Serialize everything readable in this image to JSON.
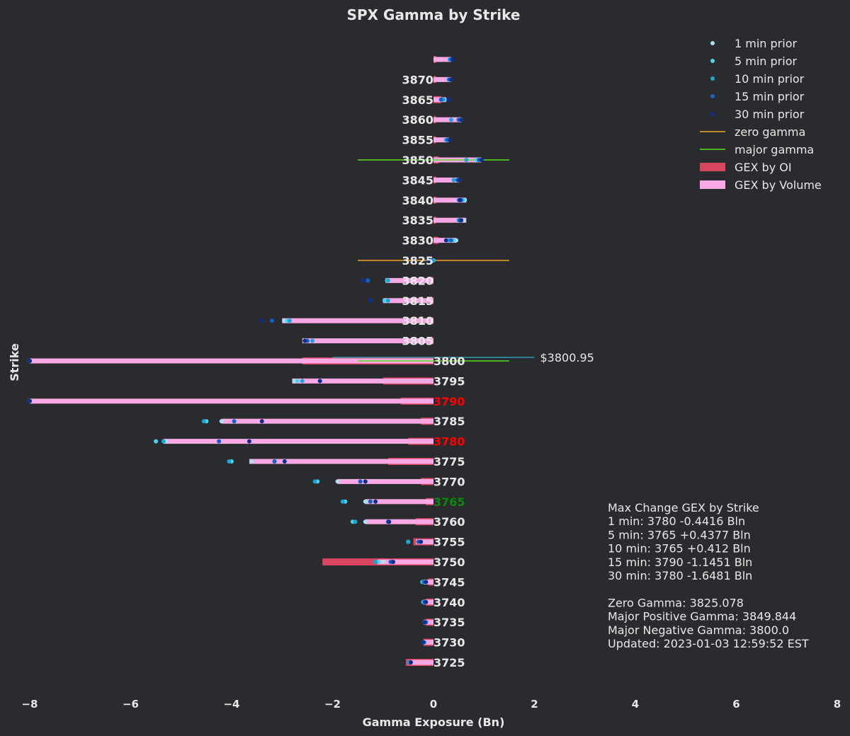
{
  "chart_data": {
    "type": "bar",
    "orientation": "horizontal",
    "title": "SPX Gamma by Strike",
    "xlabel": "Gamma Exposure (Bn)",
    "ylabel": "Strike",
    "xlim": [
      -8,
      8
    ],
    "xticks": [
      -8,
      -6,
      -4,
      -2,
      0,
      2,
      4,
      6,
      8
    ],
    "xtick_labels": [
      "−8",
      "−6",
      "−4",
      "−2",
      "0",
      "2",
      "4",
      "6",
      "8"
    ],
    "grid": false,
    "legend_position": "top-right",
    "strike_labels": [
      "",
      "3870",
      "3865",
      "3860",
      "3855",
      "3850",
      "3845",
      "3840",
      "3835",
      "3830",
      "3825",
      "3820",
      "3815",
      "3810",
      "3805",
      "3800",
      "3795",
      "3790",
      "3785",
      "3780",
      "3775",
      "3770",
      "3765",
      "3760",
      "3755",
      "3750",
      "3745",
      "3740",
      "3735",
      "3730",
      "3725"
    ],
    "strike_label_colors": {
      "3790": "#ff0000",
      "3780": "#ff0000",
      "3765": "#0a8a0a"
    },
    "series": [
      {
        "name": "GEX by OI",
        "color": "#d9455f",
        "values": [
          0.05,
          0.05,
          0.15,
          0.05,
          0.05,
          0.1,
          0.05,
          0.05,
          0.05,
          0.1,
          0.0,
          -0.05,
          -0.05,
          -0.05,
          -0.05,
          -2.6,
          -1.0,
          -0.65,
          -0.25,
          -0.5,
          -0.9,
          -0.25,
          -0.15,
          -0.35,
          -0.4,
          -2.2,
          -0.1,
          -0.15,
          -0.15,
          -0.2,
          -0.55
        ]
      },
      {
        "name": "GEX by Volume",
        "color": "#f9a8e6",
        "values": [
          0.35,
          0.35,
          0.25,
          0.55,
          0.3,
          0.95,
          0.5,
          0.65,
          0.65,
          0.45,
          0.0,
          -0.95,
          -1.0,
          -3.0,
          -2.6,
          -8.0,
          -2.8,
          -8.0,
          -4.2,
          -5.35,
          -3.65,
          -1.9,
          -1.35,
          -1.35,
          -0.35,
          -1.1,
          -0.2,
          -0.2,
          -0.2,
          -0.2,
          -0.45
        ]
      }
    ],
    "prior_series": [
      {
        "name": "1 min prior",
        "color": "#a8e3f5",
        "values": [
          0.35,
          0.33,
          0.22,
          0.55,
          0.3,
          0.9,
          0.5,
          0.62,
          0.6,
          0.45,
          0.0,
          -0.9,
          -0.95,
          -2.95,
          -2.55,
          -8.0,
          -2.75,
          -8.0,
          -4.2,
          -5.3,
          -3.6,
          -1.9,
          -1.35,
          -1.35,
          -0.5,
          -1.0,
          -0.2,
          -0.2,
          -0.18,
          -0.2,
          -0.45
        ]
      },
      {
        "name": "5 min prior",
        "color": "#4fd2f2",
        "values": [
          0.33,
          0.32,
          0.2,
          0.5,
          0.28,
          0.85,
          0.45,
          0.6,
          0.55,
          0.4,
          -0.02,
          -0.92,
          -0.97,
          -2.9,
          -2.5,
          -8.0,
          -2.7,
          -8.0,
          -4.5,
          -5.5,
          -4.0,
          -2.3,
          -1.75,
          -1.6,
          -0.5,
          -1.1,
          -0.22,
          -0.2,
          -0.18,
          -0.2,
          -0.45
        ]
      },
      {
        "name": "10 min prior",
        "color": "#1ca6d6",
        "values": [
          0.32,
          0.3,
          0.2,
          0.35,
          0.25,
          0.65,
          0.4,
          0.5,
          0.5,
          0.3,
          0.0,
          -0.9,
          -0.9,
          -2.85,
          -2.4,
          -8.0,
          -2.6,
          -8.0,
          -4.55,
          -5.35,
          -4.05,
          -2.35,
          -1.8,
          -1.55,
          -0.5,
          -1.15,
          -0.2,
          -0.18,
          -0.15,
          -0.18,
          -0.48
        ]
      },
      {
        "name": "15 min prior",
        "color": "#0c64c8",
        "values": [
          0.35,
          0.32,
          0.15,
          0.5,
          0.28,
          0.9,
          0.48,
          0.55,
          0.52,
          0.35,
          -0.05,
          -1.3,
          -1.25,
          -3.2,
          -2.5,
          -8.0,
          -2.25,
          -8.0,
          -3.95,
          -4.25,
          -3.15,
          -1.45,
          -1.25,
          -0.9,
          -0.3,
          -0.85,
          -0.18,
          -0.18,
          -0.15,
          -0.2,
          -0.45
        ]
      },
      {
        "name": "30 min prior",
        "color": "#0c2f8a",
        "values": [
          0.38,
          0.35,
          0.3,
          0.55,
          0.32,
          0.95,
          0.5,
          0.52,
          0.55,
          0.25,
          -0.1,
          -1.4,
          -1.25,
          -3.4,
          -2.55,
          -8.0,
          -2.25,
          -8.0,
          -3.4,
          -3.65,
          -2.95,
          -1.35,
          -1.15,
          -0.88,
          -0.25,
          -0.8,
          -0.15,
          -0.15,
          -0.18,
          -0.2,
          -0.45
        ]
      }
    ],
    "reference_lines": [
      {
        "name": "zero gamma",
        "color": "#f5a623",
        "strike": 3825,
        "x_range": [
          -1.5,
          1.5
        ]
      },
      {
        "name": "major gamma",
        "color": "#55e01c",
        "strike": 3850,
        "x_range": [
          -1.5,
          1.5
        ]
      },
      {
        "name": "major gamma",
        "color": "#55e01c",
        "strike": 3800,
        "x_range": [
          -1.5,
          1.5
        ]
      }
    ],
    "spot": {
      "label": "$3800.95",
      "color": "#2ab0c8",
      "x_range": [
        -2,
        2
      ]
    },
    "info_lines": [
      "Max Change GEX by Strike",
      "1 min:   3780 -0.4416 Bln",
      "5 min:   3765 +0.4377 Bln",
      "10 min: 3765 +0.412 Bln",
      "15 min: 3790 -1.1451 Bln",
      "30 min: 3780 -1.6481 Bln",
      "",
      "Zero Gamma: 3825.078",
      "Major Positive Gamma: 3849.844",
      "Major Negative Gamma: 3800.0",
      "Updated: 2023-01-03 12:59:52 EST"
    ]
  }
}
